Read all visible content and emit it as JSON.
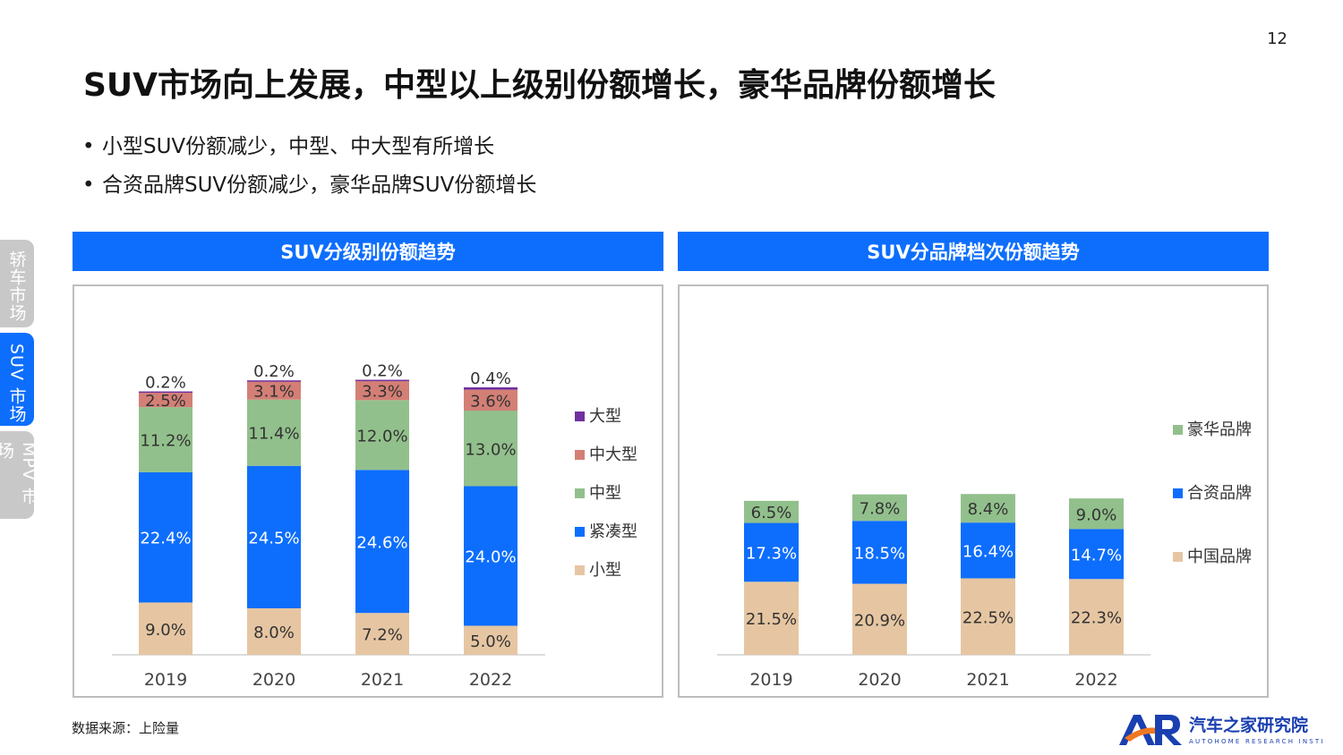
{
  "page": {
    "number": "12"
  },
  "title": "SUV市场向上发展，中型以上级别份额增长，豪华品牌份额增长",
  "bullets": [
    "小型SUV份额减少，中型、中大型有所增长",
    "合资品牌SUV份额减少，豪华品牌SUV份额增长"
  ],
  "side_tabs": [
    {
      "label": "轿车市场",
      "active": false
    },
    {
      "label": "SUV 市场",
      "active": true
    },
    {
      "label": "MPV 市场",
      "active": false
    }
  ],
  "source": "数据来源：上险量",
  "logo": {
    "name": "汽车之家研究院",
    "sub": "AUTOHOME RESEARCH INSTITUTE"
  },
  "colors": {
    "accent": "#0d6efd",
    "small": "#e6c6a2",
    "compact": "#0d6efd",
    "mid": "#92c08c",
    "midlarge": "#d47f76",
    "large": "#7030a0",
    "chinese": "#e6c6a2",
    "jv": "#0d6efd",
    "luxury": "#92c08c"
  },
  "chart_data": [
    {
      "type": "bar",
      "stacked": true,
      "title": "SUV分级别份额趋势",
      "categories": [
        "2019",
        "2020",
        "2021",
        "2022"
      ],
      "series": [
        {
          "name": "小型",
          "values": [
            9.0,
            8.0,
            7.2,
            5.0
          ],
          "labels": [
            "9.0%",
            "8.0%",
            "7.2%",
            "5.0%"
          ],
          "color": "#e6c6a2"
        },
        {
          "name": "紧凑型",
          "values": [
            22.4,
            24.5,
            24.6,
            24.0
          ],
          "labels": [
            "22.4%",
            "24.5%",
            "24.6%",
            "24.0%"
          ],
          "color": "#0d6efd"
        },
        {
          "name": "中型",
          "values": [
            11.2,
            11.4,
            12.0,
            13.0
          ],
          "labels": [
            "11.2%",
            "11.4%",
            "12.0%",
            "13.0%"
          ],
          "color": "#92c08c"
        },
        {
          "name": "中大型",
          "values": [
            2.5,
            3.1,
            3.3,
            3.6
          ],
          "labels": [
            "2.5%",
            "3.1%",
            "3.3%",
            "3.6%"
          ],
          "color": "#d47f76"
        },
        {
          "name": "大型",
          "values": [
            0.2,
            0.2,
            0.2,
            0.4
          ],
          "labels": [
            "0.2%",
            "0.2%",
            "0.2%",
            "0.4%"
          ],
          "color": "#7030a0"
        }
      ],
      "legend_order": [
        "大型",
        "中大型",
        "中型",
        "紧凑型",
        "小型"
      ],
      "legend_position": "right",
      "grid": false
    },
    {
      "type": "bar",
      "stacked": true,
      "title": "SUV分品牌档次份额趋势",
      "categories": [
        "2019",
        "2020",
        "2021",
        "2022"
      ],
      "series": [
        {
          "name": "中国品牌",
          "values": [
            21.5,
            20.9,
            22.5,
            22.3
          ],
          "labels": [
            "21.5%",
            "20.9%",
            "22.5%",
            "22.3%"
          ],
          "color": "#e6c6a2"
        },
        {
          "name": "合资品牌",
          "values": [
            17.3,
            18.5,
            16.4,
            14.7
          ],
          "labels": [
            "17.3%",
            "18.5%",
            "16.4%",
            "14.7%"
          ],
          "color": "#0d6efd"
        },
        {
          "name": "豪华品牌",
          "values": [
            6.5,
            7.8,
            8.4,
            9.0
          ],
          "labels": [
            "6.5%",
            "7.8%",
            "8.4%",
            "9.0%"
          ],
          "color": "#92c08c"
        }
      ],
      "legend_order": [
        "豪华品牌",
        "合资品牌",
        "中国品牌"
      ],
      "legend_position": "right",
      "grid": false
    }
  ]
}
